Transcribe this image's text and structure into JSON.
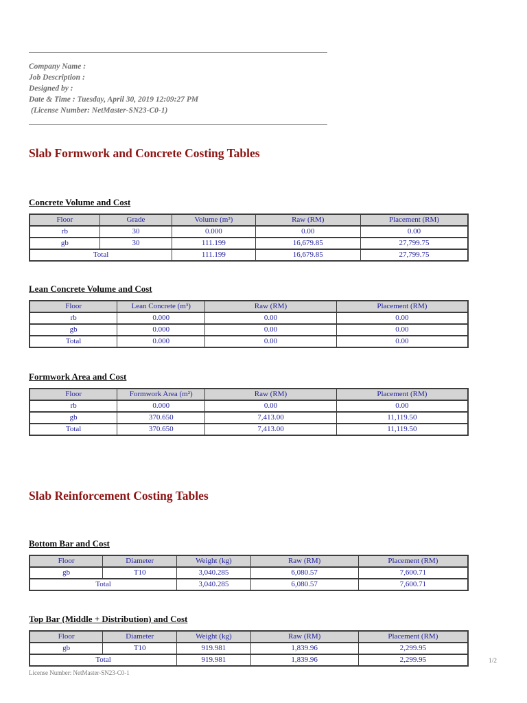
{
  "header": {
    "lines": [
      "Company Name :",
      "Job Description :",
      "Designed by :",
      "Date & Time : Tuesday, April 30, 2019 12:09:27 PM",
      "(License Number: NetMaster-SN23-C0-1)"
    ]
  },
  "sections": [
    {
      "title": "Slab Formwork and Concrete Costing Tables"
    },
    {
      "title": "Slab Reinforcement Costing Tables"
    }
  ],
  "tables": [
    {
      "heading": "Concrete Volume and Cost",
      "columns": [
        "Floor",
        "Grade",
        "Volume (m³)",
        "Raw (RM)",
        "Placement (RM)"
      ],
      "col_widths": [
        "16%",
        "16.5%",
        "19%",
        "24%",
        "24.5%"
      ],
      "rows": [
        [
          "rb",
          "30",
          "0.000",
          "0.00",
          "0.00"
        ],
        [
          "gb",
          "30",
          "111.199",
          "16,679.85",
          "27,799.75"
        ]
      ],
      "total": {
        "label": "Total",
        "colspan": 2,
        "values": [
          "111.199",
          "16,679.85",
          "27,799.75"
        ]
      }
    },
    {
      "heading": "Lean Concrete Volume and Cost",
      "columns": [
        "Floor",
        "Lean Concrete (m³)",
        "Raw (RM)",
        "Placement (RM)"
      ],
      "col_widths": [
        "20%",
        "20%",
        "30%",
        "30%"
      ],
      "rows": [
        [
          "rb",
          "0.000",
          "0.00",
          "0.00"
        ],
        [
          "gb",
          "0.000",
          "0.00",
          "0.00"
        ]
      ],
      "total": {
        "label": "Total",
        "colspan": 1,
        "values": [
          "0.000",
          "0.00",
          "0.00"
        ]
      }
    },
    {
      "heading": "Formwork Area and Cost",
      "columns": [
        "Floor",
        "Formwork Area (m²)",
        "Raw (RM)",
        "Placement (RM)"
      ],
      "col_widths": [
        "20%",
        "20%",
        "30%",
        "30%"
      ],
      "rows": [
        [
          "rb",
          "0.000",
          "0.00",
          "0.00"
        ],
        [
          "gb",
          "370.650",
          "7,413.00",
          "11,119.50"
        ]
      ],
      "total": {
        "label": "Total",
        "colspan": 1,
        "values": [
          "370.650",
          "7,413.00",
          "11,119.50"
        ]
      }
    },
    {
      "heading": "Bottom Bar and Cost",
      "columns": [
        "Floor",
        "Diameter",
        "Weight (kg)",
        "Raw (RM)",
        "Placement (RM)"
      ],
      "col_widths": [
        "16.7%",
        "16.9%",
        "16.8%",
        "24.6%",
        "25%"
      ],
      "rows": [
        [
          "gb",
          "T10",
          "3,040.285",
          "6,080.57",
          "7,600.71"
        ]
      ],
      "total": {
        "label": "Total",
        "colspan": 2,
        "values": [
          "3,040.285",
          "6,080.57",
          "7,600.71"
        ]
      }
    },
    {
      "heading": "Top Bar (Middle + Distribution) and Cost",
      "columns": [
        "Floor",
        "Diameter",
        "Weight (kg)",
        "Raw (RM)",
        "Placement (RM)"
      ],
      "col_widths": [
        "16.7%",
        "16.9%",
        "16.8%",
        "24.6%",
        "25%"
      ],
      "rows": [
        [
          "gb",
          "T10",
          "919.981",
          "1,839.96",
          "2,299.95"
        ]
      ],
      "total": {
        "label": "Total",
        "colspan": 2,
        "values": [
          "919.981",
          "1,839.96",
          "2,299.95"
        ]
      }
    }
  ],
  "footer": {
    "license": "License Number: NetMaster-SN23-C0-1",
    "page": "1/2"
  },
  "colors": {
    "title_red": "#8E1414",
    "table_text_navy": "#22229C",
    "header_cell_bg": "#D4D4D4",
    "border_dark": "#3C3C3C",
    "meta_gray": "#6E6E6E",
    "rule_gray": "#9A9A9A",
    "footer_gray": "#757575"
  }
}
